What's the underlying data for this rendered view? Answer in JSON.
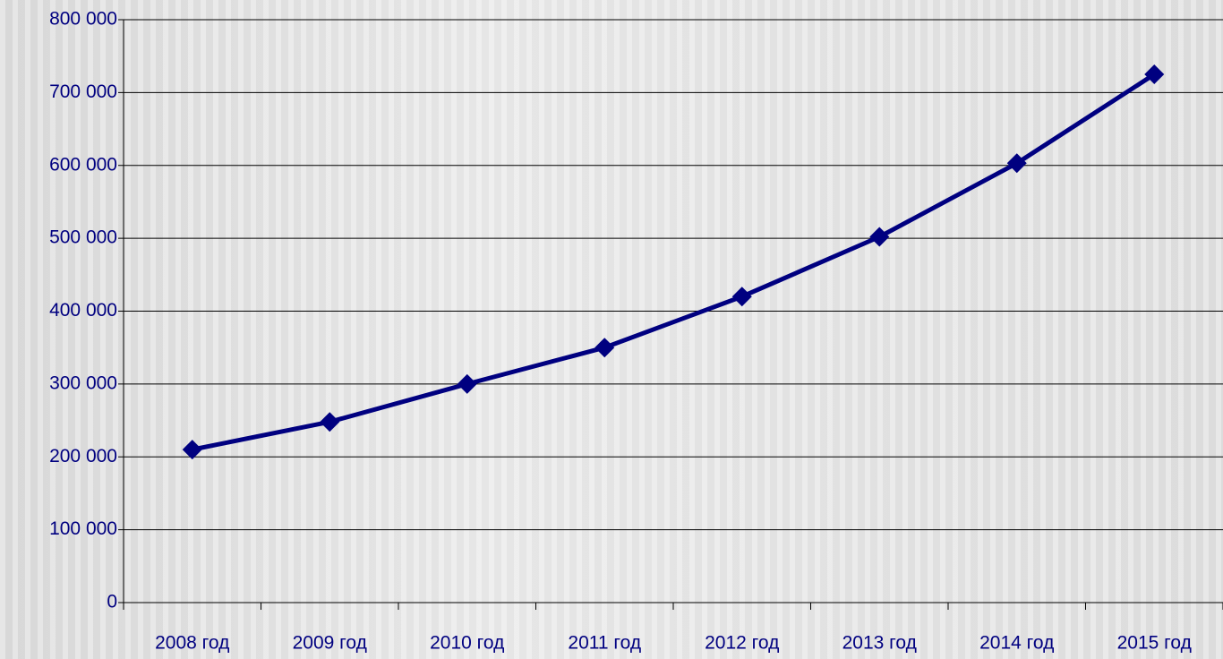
{
  "chart_data": {
    "type": "line",
    "categories": [
      "2008 год",
      "2009 год",
      "2010 год",
      "2011 год",
      "2012 год",
      "2013 год",
      "2014 год",
      "2015 год"
    ],
    "series": [
      {
        "color": "#000080",
        "values": [
          210000,
          248000,
          300000,
          350000,
          420000,
          502000,
          603000,
          725000
        ]
      }
    ],
    "ylim": [
      0,
      800000
    ],
    "yticks": [
      0,
      {
        "value": 100000,
        "label": "100 000"
      },
      {
        "value": 200000,
        "label": "200 000"
      },
      {
        "value": 300000,
        "label": "300 000"
      },
      {
        "value": 400000,
        "label": "400 000"
      },
      {
        "value": 500000,
        "label": "500 000"
      },
      {
        "value": 600000,
        "label": "600 000"
      },
      {
        "value": 700000,
        "label": "700 000"
      },
      {
        "value": 800000,
        "label": "800 000"
      }
    ],
    "grid": true
  }
}
